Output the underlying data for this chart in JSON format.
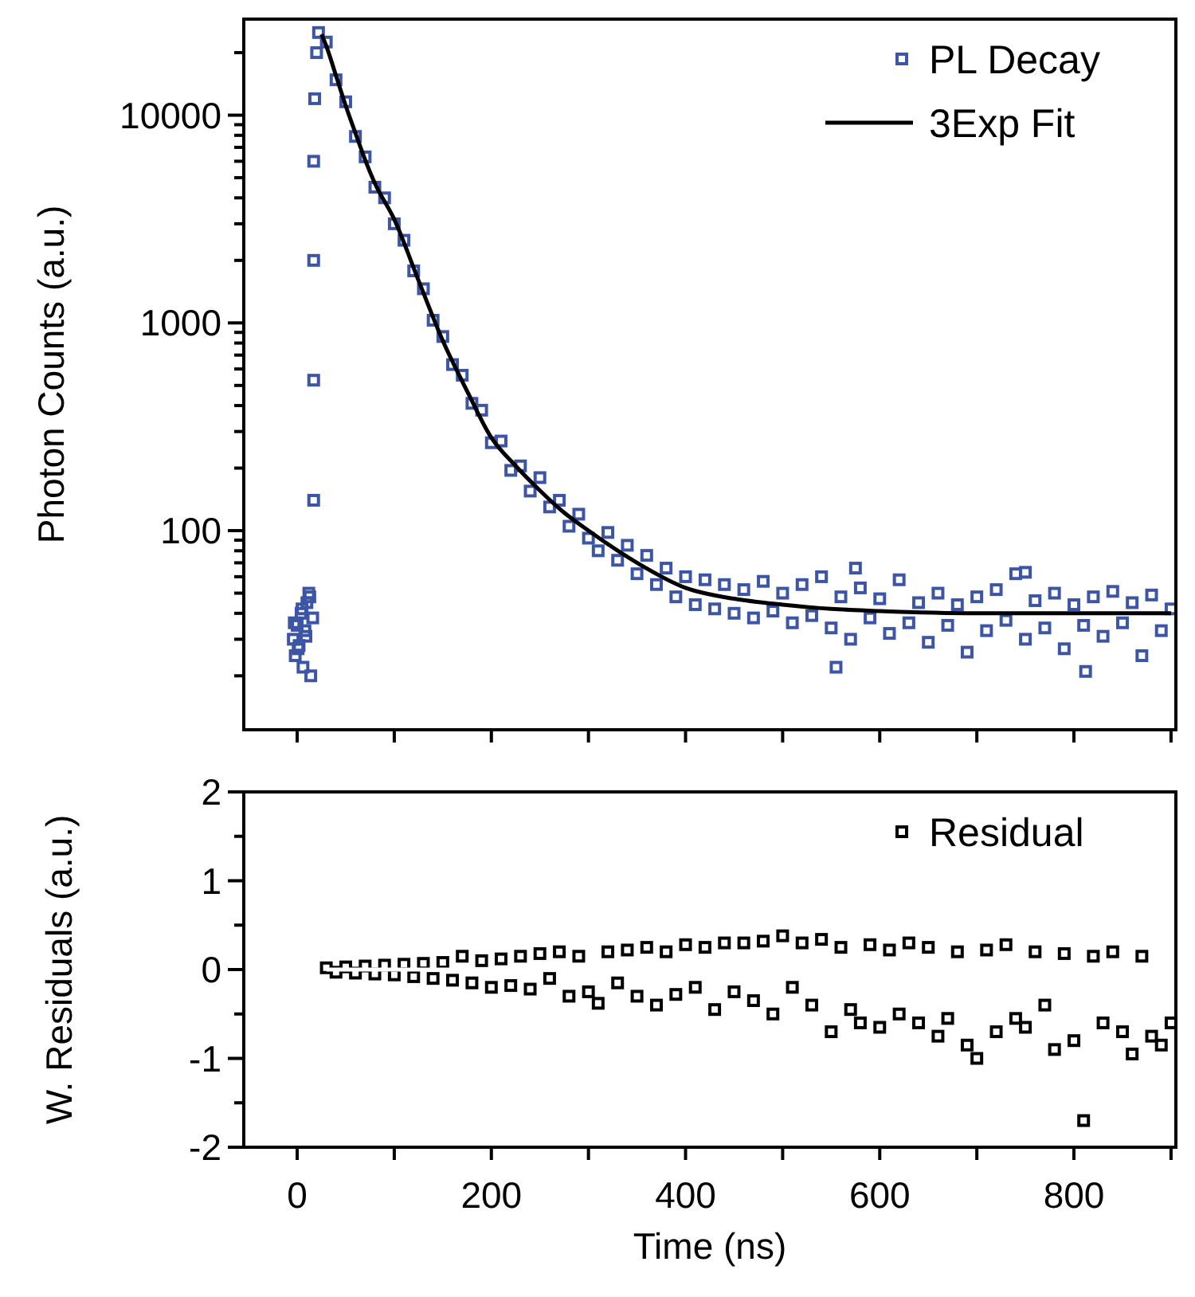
{
  "chart_data": [
    {
      "type": "scatter",
      "ylabel": "Photon Counts (a.u.)",
      "log": "y",
      "marker": "square",
      "legend": "top right",
      "tick_labels": "y",
      "xlim": [
        -55,
        905
      ],
      "xticks": [
        {
          "value": 0,
          "label": null
        },
        {
          "value": 100,
          "label": null
        },
        {
          "value": 200,
          "label": null
        },
        {
          "value": 300,
          "label": null
        },
        {
          "value": 400,
          "label": null
        },
        {
          "value": 500,
          "label": null
        },
        {
          "value": 600,
          "label": null
        },
        {
          "value": 700,
          "label": null
        },
        {
          "value": 800,
          "label": null
        },
        {
          "value": 900,
          "label": null
        }
      ],
      "ylim": [
        11,
        29000
      ],
      "yticks": [
        {
          "value": 20,
          "label": null
        },
        {
          "value": 30,
          "label": null
        },
        {
          "value": 40,
          "label": null
        },
        {
          "value": 50,
          "label": null
        },
        {
          "value": 60,
          "label": null
        },
        {
          "value": 70,
          "label": null
        },
        {
          "value": 80,
          "label": null
        },
        {
          "value": 90,
          "label": null
        },
        100,
        {
          "value": 200,
          "label": null
        },
        {
          "value": 300,
          "label": null
        },
        {
          "value": 400,
          "label": null
        },
        {
          "value": 500,
          "label": null
        },
        {
          "value": 600,
          "label": null
        },
        {
          "value": 700,
          "label": null
        },
        {
          "value": 800,
          "label": null
        },
        {
          "value": 900,
          "label": null
        },
        1000,
        {
          "value": 2000,
          "label": null
        },
        {
          "value": 3000,
          "label": null
        },
        {
          "value": 4000,
          "label": null
        },
        {
          "value": 5000,
          "label": null
        },
        {
          "value": 6000,
          "label": null
        },
        {
          "value": 7000,
          "label": null
        },
        {
          "value": 8000,
          "label": null
        },
        {
          "value": 9000,
          "label": null
        },
        10000,
        {
          "value": 20000,
          "label": null
        }
      ],
      "series": [
        {
          "name": "PL Decay",
          "color": "#3c55a5",
          "x": [
            -4,
            -2,
            0,
            2,
            4,
            6,
            8,
            10,
            12,
            14,
            16,
            -3,
            1,
            5,
            9,
            13,
            17,
            17,
            17,
            17,
            18,
            20,
            22,
            30,
            40,
            50,
            60,
            70,
            80,
            90,
            100,
            110,
            120,
            130,
            140,
            150,
            160,
            170,
            180,
            190,
            200,
            210,
            220,
            230,
            240,
            250,
            260,
            270,
            280,
            290,
            300,
            310,
            320,
            330,
            340,
            350,
            360,
            370,
            380,
            390,
            400,
            410,
            420,
            430,
            440,
            450,
            460,
            470,
            480,
            490,
            500,
            510,
            520,
            530,
            540,
            550,
            555,
            560,
            570,
            575,
            580,
            590,
            600,
            610,
            620,
            630,
            640,
            650,
            660,
            670,
            680,
            690,
            700,
            710,
            720,
            730,
            740,
            750,
            750,
            760,
            770,
            780,
            790,
            800,
            810,
            812,
            820,
            830,
            840,
            850,
            860,
            870,
            880,
            890,
            900
          ],
          "values": [
            30,
            25,
            35,
            28,
            40,
            22,
            33,
            45,
            50,
            20,
            38,
            36,
            27,
            42,
            31,
            48,
            140,
            530,
            2000,
            6000,
            12000,
            20000,
            25000,
            22500,
            14800,
            11600,
            7900,
            6300,
            4500,
            4000,
            3000,
            2500,
            1780,
            1460,
            1030,
            860,
            630,
            560,
            410,
            380,
            265,
            270,
            195,
            205,
            155,
            180,
            130,
            140,
            105,
            120,
            92,
            80,
            98,
            72,
            85,
            62,
            76,
            55,
            66,
            48,
            60,
            44,
            58,
            42,
            55,
            40,
            52,
            38,
            57,
            41,
            50,
            36,
            55,
            39,
            60,
            34,
            22,
            48,
            30,
            66,
            53,
            38,
            47,
            32,
            58,
            36,
            45,
            29,
            50,
            35,
            44,
            26,
            48,
            33,
            52,
            37,
            62,
            30,
            63,
            46,
            34,
            50,
            27,
            44,
            35,
            21,
            48,
            31,
            51,
            36,
            45,
            25,
            49,
            33,
            42
          ]
        },
        {
          "name": "3Exp Fit",
          "type": "line",
          "marker": "none",
          "color": "#000000",
          "x": [
            25,
            30,
            40,
            50,
            60,
            70,
            80,
            100,
            125,
            150,
            175,
            200,
            225,
            250,
            275,
            300,
            350,
            400,
            450,
            500,
            550,
            600,
            700,
            800,
            900
          ],
          "values": [
            24500,
            21500,
            15500,
            11100,
            8200,
            6100,
            4700,
            3150,
            1600,
            820,
            470,
            280,
            205,
            156,
            122,
            100,
            70,
            53,
            47,
            44,
            42,
            41,
            40,
            40,
            40
          ]
        }
      ]
    },
    {
      "type": "scatter",
      "xlabel": "Time (ns)",
      "ylabel": "W. Residuals (a.u.)",
      "marker": "square",
      "legend": "top right",
      "xlim": [
        -55,
        905
      ],
      "xticks": [
        0,
        {
          "value": 100,
          "label": null
        },
        200,
        {
          "value": 300,
          "label": null
        },
        400,
        {
          "value": 500,
          "label": null
        },
        600,
        {
          "value": 700,
          "label": null
        },
        800,
        {
          "value": 900,
          "label": null
        }
      ],
      "ylim": [
        -2,
        2
      ],
      "yticks": [
        -2,
        {
          "value": -1.5,
          "label": null
        },
        -1,
        {
          "value": -0.5,
          "label": null
        },
        0,
        {
          "value": 0.5,
          "label": null
        },
        1,
        {
          "value": 1.5,
          "label": null
        },
        2
      ],
      "ref_lines": [
        {
          "axis": "y",
          "value": 0,
          "color": "#ffffff"
        }
      ],
      "series": [
        {
          "name": "Residual",
          "color": "#000000",
          "x": [
            30,
            40,
            50,
            60,
            70,
            80,
            90,
            100,
            110,
            120,
            130,
            140,
            150,
            160,
            170,
            180,
            190,
            200,
            210,
            220,
            230,
            240,
            250,
            260,
            270,
            280,
            290,
            300,
            310,
            320,
            330,
            340,
            350,
            360,
            370,
            380,
            390,
            400,
            410,
            420,
            430,
            440,
            450,
            460,
            470,
            480,
            490,
            500,
            510,
            520,
            530,
            540,
            550,
            560,
            570,
            580,
            590,
            600,
            610,
            620,
            630,
            640,
            650,
            660,
            670,
            680,
            690,
            700,
            710,
            720,
            730,
            740,
            750,
            760,
            770,
            780,
            790,
            800,
            810,
            820,
            830,
            840,
            850,
            860,
            870,
            880,
            890,
            900
          ],
          "values": [
            0.02,
            -0.03,
            0.03,
            -0.04,
            0.04,
            -0.05,
            0.05,
            -0.06,
            0.06,
            -0.08,
            0.07,
            -0.1,
            0.08,
            -0.12,
            0.15,
            -0.15,
            0.1,
            -0.2,
            0.12,
            -0.18,
            0.15,
            -0.22,
            0.18,
            -0.1,
            0.2,
            -0.3,
            0.15,
            -0.25,
            -0.38,
            0.2,
            -0.15,
            0.22,
            -0.3,
            0.25,
            -0.4,
            0.2,
            -0.28,
            0.28,
            -0.2,
            0.25,
            -0.45,
            0.3,
            -0.25,
            0.3,
            -0.35,
            0.32,
            -0.5,
            0.38,
            -0.2,
            0.3,
            -0.4,
            0.34,
            -0.7,
            0.25,
            -0.45,
            -0.6,
            0.28,
            -0.65,
            0.22,
            -0.5,
            0.3,
            -0.6,
            0.25,
            -0.75,
            -0.55,
            0.2,
            -0.85,
            -1.0,
            0.22,
            -0.7,
            0.28,
            -0.55,
            -0.65,
            0.2,
            -0.4,
            -0.9,
            0.18,
            -0.8,
            -1.7,
            0.15,
            -0.6,
            0.2,
            -0.7,
            -0.95,
            0.15,
            -0.75,
            -0.85,
            -0.6
          ]
        }
      ]
    }
  ]
}
